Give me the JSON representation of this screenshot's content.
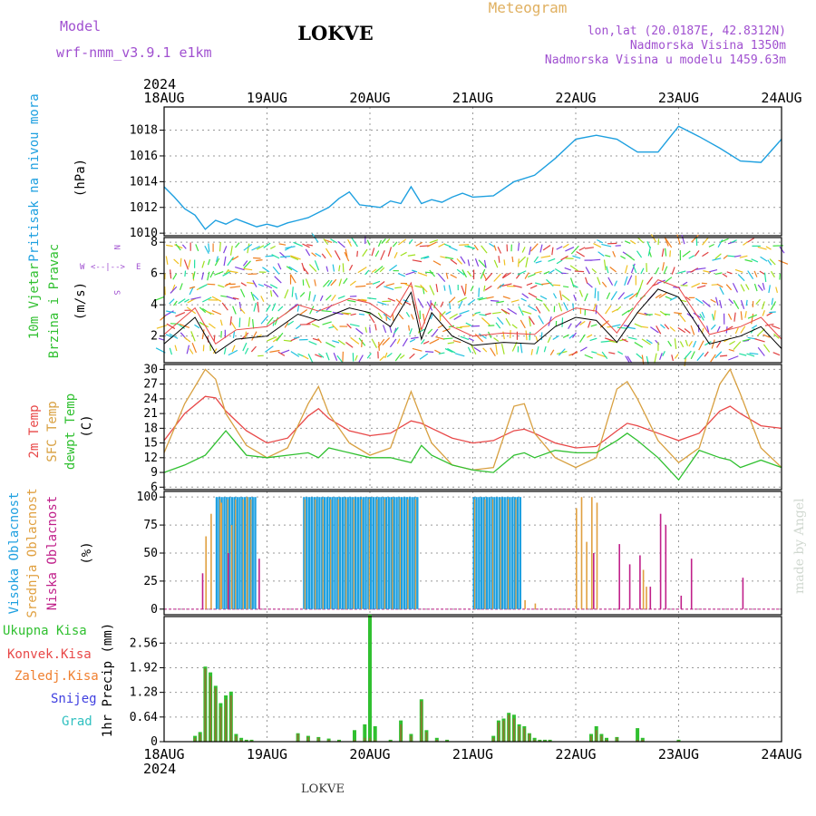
{
  "header": {
    "model_label": "Model",
    "model_name": "wrf-nmm_v3.9.1 e1km",
    "station": "LOKVE",
    "meteogram_label": "Meteogram",
    "lonlat": "lon,lat (20.0187E, 42.8312N)",
    "altitude": "Nadmorska Visina 1350m",
    "model_altitude": "Nadmorska Visina u modelu 1459.63m",
    "year_top": "2024",
    "year_bottom": "2024",
    "footer_station": "LOKVE",
    "credit": "made by Angel"
  },
  "colors": {
    "pressure": "#1ea0e0",
    "temp2m": "#e84848",
    "sfc": "#d8a040",
    "dew": "#30c030",
    "high_cloud": "#1ea0e0",
    "mid_cloud": "#e0a040",
    "low_cloud": "#c0208a",
    "total_precip": "#30c030",
    "conv_precip": "#e84848",
    "frozen_precip": "#f08030",
    "snow": "#4040e0",
    "hail": "#30c0c0",
    "model_text": "#a050d0",
    "meteogram_text": "#e0b060"
  },
  "chart_data": [
    {
      "type": "line",
      "name": "pressure",
      "ylabel": "Pritisak na nivou mora",
      "unit": "(hPa)",
      "x_ticks": [
        "18AUG",
        "19AUG",
        "20AUG",
        "21AUG",
        "22AUG",
        "23AUG",
        "24AUG"
      ],
      "ylim": [
        1009.8,
        1019.8
      ],
      "yticks": [
        "1010",
        "1012",
        "1014",
        "1016",
        "1018"
      ],
      "grid": true,
      "x_day": [
        0,
        0.1,
        0.2,
        0.3,
        0.4,
        0.5,
        0.6,
        0.7,
        0.8,
        0.9,
        1.0,
        1.1,
        1.2,
        1.3,
        1.4,
        1.5,
        1.6,
        1.7,
        1.8,
        1.9,
        2.0,
        2.1,
        2.2,
        2.3,
        2.4,
        2.5,
        2.6,
        2.7,
        2.8,
        2.9,
        3.0,
        3.2,
        3.4,
        3.6,
        3.8,
        4.0,
        4.2,
        4.4,
        4.6,
        4.8,
        5.0,
        5.2,
        5.4,
        5.6,
        5.8,
        6.0
      ],
      "values": [
        1013.6,
        1012.8,
        1011.9,
        1011.4,
        1010.3,
        1011.0,
        1010.7,
        1011.1,
        1010.8,
        1010.5,
        1010.7,
        1010.5,
        1010.8,
        1011.0,
        1011.2,
        1011.6,
        1012.0,
        1012.7,
        1013.2,
        1012.2,
        1012.1,
        1012.0,
        1012.5,
        1012.3,
        1013.6,
        1012.3,
        1012.6,
        1012.4,
        1012.8,
        1013.1,
        1012.8,
        1012.9,
        1014.0,
        1014.5,
        1015.8,
        1017.3,
        1017.6,
        1017.3,
        1016.3,
        1016.3,
        1018.3,
        1017.5,
        1016.6,
        1015.6,
        1015.5,
        1017.3
      ]
    },
    {
      "type": "line",
      "name": "wind",
      "ylabel": "10m Vjetar",
      "ylabel2": "Brzina i Pravac",
      "unit": "(m/s)",
      "compass": [
        "W",
        "<--|-->",
        "E",
        "N",
        "S"
      ],
      "ylim": [
        0.3,
        8.3
      ],
      "yticks": [
        "2",
        "4",
        "6",
        "8"
      ],
      "x_day": [
        0,
        0.3,
        0.5,
        0.7,
        1.0,
        1.3,
        1.5,
        1.8,
        2.0,
        2.2,
        2.4,
        2.5,
        2.6,
        2.8,
        3.0,
        3.3,
        3.6,
        3.8,
        4.0,
        4.2,
        4.4,
        4.6,
        4.8,
        5.0,
        5.3,
        5.6,
        5.8,
        6.0
      ],
      "values": [
        1.5,
        3.2,
        0.9,
        1.8,
        2.0,
        3.4,
        3.0,
        3.8,
        3.5,
        2.6,
        4.8,
        1.8,
        3.5,
        2.0,
        1.4,
        1.6,
        1.5,
        2.6,
        3.2,
        3.0,
        1.6,
        3.5,
        5.0,
        4.5,
        1.5,
        2.0,
        2.6,
        1.2
      ]
    },
    {
      "type": "line",
      "name": "temperature",
      "ylabel": "2m Temp",
      "ylabel2": "SFC Temp",
      "ylabel3": "dewpt Temp",
      "unit": "(C)",
      "ylim": [
        5.5,
        31.0
      ],
      "yticks": [
        "6",
        "9",
        "12",
        "15",
        "18",
        "21",
        "24",
        "27",
        "30"
      ],
      "x_day": [
        0,
        0.2,
        0.4,
        0.5,
        0.6,
        0.8,
        1.0,
        1.2,
        1.4,
        1.5,
        1.6,
        1.8,
        2.0,
        2.2,
        2.4,
        2.5,
        2.6,
        2.8,
        3.0,
        3.2,
        3.4,
        3.5,
        3.6,
        3.8,
        4.0,
        4.2,
        4.4,
        4.5,
        4.6,
        4.8,
        5.0,
        5.2,
        5.4,
        5.5,
        5.6,
        5.8,
        6.0
      ],
      "series": [
        {
          "name": "2m Temp",
          "values": [
            15.5,
            21.0,
            24.5,
            24.2,
            21.5,
            17.5,
            15.0,
            16.0,
            20.5,
            22.0,
            20.0,
            17.5,
            16.5,
            17.0,
            19.5,
            19.0,
            18.0,
            16.0,
            15.0,
            15.5,
            17.5,
            17.8,
            17.0,
            15.0,
            14.0,
            14.3,
            17.5,
            19.0,
            18.5,
            17.0,
            15.5,
            17.0,
            21.5,
            22.5,
            21.0,
            18.5,
            18.0
          ]
        },
        {
          "name": "SFC Temp",
          "values": [
            13.0,
            23.0,
            30.0,
            28.0,
            21.0,
            14.5,
            12.0,
            14.0,
            23.0,
            26.5,
            21.0,
            15.0,
            12.5,
            14.0,
            25.5,
            20.0,
            15.0,
            10.5,
            9.5,
            10.0,
            22.5,
            23.0,
            17.0,
            12.0,
            10.0,
            12.0,
            26.0,
            27.5,
            24.0,
            15.5,
            11.0,
            14.0,
            27.0,
            30.0,
            25.0,
            14.0,
            10.0
          ]
        },
        {
          "name": "dewpt Temp",
          "values": [
            9.0,
            10.5,
            12.5,
            15.0,
            17.5,
            12.5,
            12.0,
            12.5,
            13.0,
            12.0,
            14.0,
            13.0,
            12.0,
            12.0,
            11.0,
            14.5,
            12.5,
            10.5,
            9.5,
            9.0,
            12.5,
            13.0,
            12.0,
            13.5,
            13.0,
            13.0,
            15.5,
            17.0,
            15.5,
            12.0,
            7.5,
            13.5,
            12.0,
            11.5,
            10.0,
            11.5,
            10.0
          ]
        }
      ]
    },
    {
      "type": "bar",
      "name": "clouds",
      "ylabel": "Visoka Oblacnost",
      "ylabel2": "Srednja Oblacnost",
      "ylabel3": "Niska Oblacnost",
      "unit": "(%)",
      "ylim": [
        -5,
        105
      ],
      "yticks": [
        "0",
        "25",
        "50",
        "75",
        "100"
      ],
      "series": [
        {
          "name": "Visoka Oblacnost",
          "segments": [
            [
              0.5,
              0.9,
              100
            ],
            [
              1.35,
              2.45,
              100
            ],
            [
              3.0,
              3.45,
              100
            ]
          ]
        },
        {
          "name": "Srednja Oblacnost",
          "points": [
            [
              0.4,
              65
            ],
            [
              0.45,
              85
            ],
            [
              0.55,
              95
            ],
            [
              0.65,
              75
            ],
            [
              0.8,
              100
            ],
            [
              4.0,
              90
            ],
            [
              4.05,
              100
            ],
            [
              4.1,
              60
            ],
            [
              4.15,
              100
            ],
            [
              4.2,
              95
            ],
            [
              4.65,
              35
            ],
            [
              4.68,
              20
            ],
            [
              3.5,
              8
            ],
            [
              3.6,
              5
            ]
          ]
        },
        {
          "name": "Niska Oblacnost",
          "points": [
            [
              0.35,
              32
            ],
            [
              0.6,
              50
            ],
            [
              0.9,
              45
            ],
            [
              4.15,
              50
            ],
            [
              4.4,
              58
            ],
            [
              4.5,
              40
            ],
            [
              4.6,
              48
            ],
            [
              4.7,
              20
            ],
            [
              4.8,
              85
            ],
            [
              4.85,
              75
            ],
            [
              5.0,
              12
            ],
            [
              5.1,
              45
            ],
            [
              5.6,
              28
            ]
          ]
        }
      ]
    },
    {
      "type": "bar",
      "name": "precip",
      "ylabel": "1hr Precip (mm)",
      "legend": [
        "Ukupna Kisa",
        "Konvek.Kisa",
        "Zaledj.Kisa",
        "Snijeg",
        "Grad"
      ],
      "ylim": [
        0,
        3.25
      ],
      "yticks": [
        "0",
        "0.64",
        "1.28",
        "1.92",
        "2.56"
      ],
      "x_ticks": [
        "18AUG",
        "19AUG",
        "20AUG",
        "21AUG",
        "22AUG",
        "23AUG",
        "24AUG"
      ],
      "x_day": [
        0.3,
        0.35,
        0.4,
        0.45,
        0.5,
        0.55,
        0.6,
        0.65,
        0.7,
        0.75,
        0.8,
        0.85,
        1.3,
        1.4,
        1.5,
        1.6,
        1.7,
        1.85,
        1.95,
        2.0,
        2.05,
        2.2,
        2.3,
        2.4,
        2.5,
        2.55,
        2.65,
        2.75,
        3.2,
        3.25,
        3.3,
        3.35,
        3.4,
        3.45,
        3.5,
        3.55,
        3.6,
        3.65,
        3.7,
        3.75,
        4.15,
        4.2,
        4.25,
        4.3,
        4.4,
        4.6,
        4.65,
        5.0
      ],
      "series": [
        {
          "name": "Ukupna Kisa",
          "values": [
            0.15,
            0.25,
            1.95,
            1.8,
            1.45,
            1.0,
            1.2,
            1.3,
            0.2,
            0.1,
            0.05,
            0.05,
            0.22,
            0.15,
            0.12,
            0.08,
            0.05,
            0.3,
            0.45,
            3.3,
            0.4,
            0.05,
            0.55,
            0.2,
            1.1,
            0.3,
            0.1,
            0.05,
            0.15,
            0.55,
            0.6,
            0.75,
            0.7,
            0.45,
            0.4,
            0.22,
            0.1,
            0.05,
            0.05,
            0.05,
            0.2,
            0.4,
            0.2,
            0.1,
            0.12,
            0.35,
            0.1,
            0.05
          ]
        },
        {
          "name": "Konvek.Kisa",
          "values": [
            0.1,
            0.2,
            1.9,
            1.7,
            1.4,
            0.9,
            1.1,
            1.2,
            0.15,
            0.05,
            0.03,
            0.03,
            0.2,
            0.12,
            0.1,
            0.05,
            0.03,
            0.05,
            0.1,
            0.1,
            0.05,
            0.03,
            0.45,
            0.15,
            1.05,
            0.25,
            0.05,
            0.03,
            0.1,
            0.5,
            0.55,
            0.7,
            0.6,
            0.4,
            0.35,
            0.2,
            0.05,
            0.03,
            0.03,
            0.03,
            0.15,
            0.3,
            0.15,
            0.05,
            0.1,
            0.05,
            0.05,
            0.03
          ]
        }
      ]
    }
  ]
}
